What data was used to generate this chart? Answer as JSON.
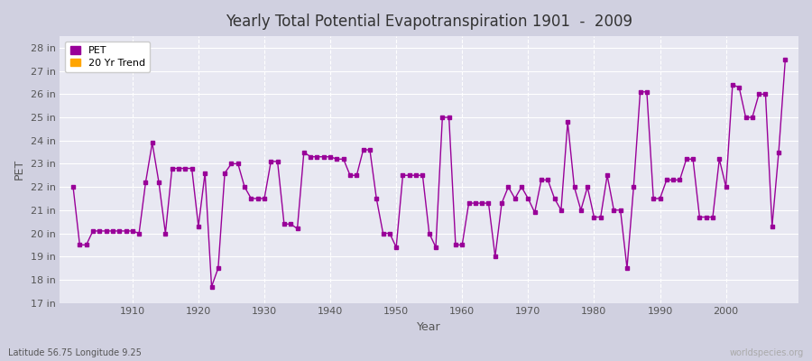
{
  "title": "Yearly Total Potential Evapotranspiration 1901  -  2009",
  "xlabel": "Year",
  "ylabel": "PET",
  "subtitle": "Latitude 56.75 Longitude 9.25",
  "watermark": "worldspecies.org",
  "pet_color": "#990099",
  "trend_color": "#FFA500",
  "ylim": [
    17,
    28.5
  ],
  "yticks": [
    17,
    18,
    19,
    20,
    21,
    22,
    23,
    24,
    25,
    26,
    27,
    28
  ],
  "ytick_labels": [
    "17 in",
    "18 in",
    "19 in",
    "20 in",
    "21 in",
    "22 in",
    "23 in",
    "24 in",
    "25 in",
    "26 in",
    "27 in",
    "28 in"
  ],
  "xlim": [
    1899,
    2011
  ],
  "xticks": [
    1910,
    1920,
    1930,
    1940,
    1950,
    1960,
    1970,
    1980,
    1990,
    2000
  ],
  "years": [
    1901,
    1902,
    1903,
    1904,
    1905,
    1906,
    1907,
    1908,
    1909,
    1910,
    1911,
    1912,
    1913,
    1914,
    1915,
    1916,
    1917,
    1918,
    1919,
    1920,
    1921,
    1922,
    1923,
    1924,
    1925,
    1926,
    1927,
    1928,
    1929,
    1930,
    1931,
    1932,
    1933,
    1934,
    1935,
    1936,
    1937,
    1938,
    1939,
    1940,
    1941,
    1942,
    1943,
    1944,
    1945,
    1946,
    1947,
    1948,
    1949,
    1950,
    1951,
    1952,
    1953,
    1954,
    1955,
    1956,
    1957,
    1958,
    1959,
    1960,
    1961,
    1962,
    1963,
    1964,
    1965,
    1966,
    1967,
    1968,
    1969,
    1970,
    1971,
    1972,
    1973,
    1974,
    1975,
    1976,
    1977,
    1978,
    1979,
    1980,
    1981,
    1982,
    1983,
    1984,
    1985,
    1986,
    1987,
    1988,
    1989,
    1990,
    1991,
    1992,
    1993,
    1994,
    1995,
    1996,
    1997,
    1998,
    1999,
    2000,
    2001,
    2002,
    2003,
    2004,
    2005,
    2006,
    2007,
    2008,
    2009
  ],
  "pet_values": [
    22.0,
    19.5,
    19.5,
    20.1,
    20.1,
    20.1,
    20.1,
    20.1,
    20.1,
    20.1,
    20.0,
    22.2,
    23.9,
    22.2,
    20.0,
    22.8,
    22.8,
    22.8,
    22.8,
    20.3,
    22.6,
    17.7,
    18.5,
    22.6,
    23.0,
    23.0,
    22.0,
    21.5,
    21.5,
    21.5,
    23.1,
    23.1,
    20.4,
    20.4,
    20.2,
    23.5,
    23.3,
    23.3,
    23.3,
    23.3,
    23.2,
    23.2,
    22.5,
    22.5,
    23.6,
    23.6,
    21.5,
    20.0,
    20.0,
    19.4,
    22.5,
    22.5,
    22.5,
    22.5,
    20.0,
    19.4,
    25.0,
    25.0,
    19.5,
    19.5,
    21.3,
    21.3,
    21.3,
    21.3,
    19.0,
    21.3,
    22.0,
    21.5,
    22.0,
    21.5,
    20.9,
    22.3,
    22.3,
    21.5,
    21.0,
    24.8,
    22.0,
    21.0,
    22.0,
    20.7,
    20.7,
    22.5,
    21.0,
    21.0,
    18.5,
    22.0,
    26.1,
    26.1,
    21.5,
    21.5,
    22.3,
    22.3,
    22.3,
    23.2,
    23.2,
    20.7,
    20.7,
    20.7,
    23.2,
    22.0,
    26.4,
    26.3,
    25.0,
    25.0,
    26.0,
    26.0,
    20.3,
    23.5,
    27.5
  ]
}
